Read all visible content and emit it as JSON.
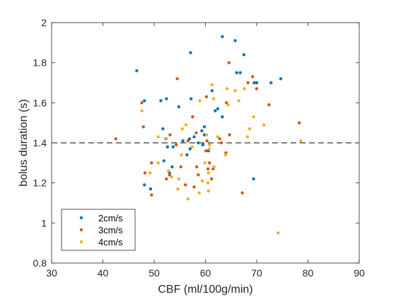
{
  "chart_data": {
    "type": "scatter",
    "xlabel": "CBF (ml/100g/min)",
    "ylabel": "bolus duration (s)",
    "xlim": [
      30,
      90
    ],
    "ylim": [
      0.8,
      2
    ],
    "xticks": [
      30,
      40,
      50,
      60,
      70,
      80,
      90
    ],
    "yticks": [
      0.8,
      1,
      1.2,
      1.4,
      1.6,
      1.8,
      2
    ],
    "xtick_labels": [
      "30",
      "40",
      "50",
      "60",
      "70",
      "80",
      "90"
    ],
    "ytick_labels": [
      "0.8",
      "1",
      "1.2",
      "1.4",
      "1.6",
      "1.8",
      "2"
    ],
    "grid": false,
    "legend_position": "bottom-left",
    "reference_line": {
      "y": 1.4,
      "style": "dashed",
      "color": "#000000"
    },
    "series": [
      {
        "name": "2cm/s",
        "color": "#0072BD",
        "points": [
          [
            63.3,
            1.93
          ],
          [
            65.8,
            1.91
          ],
          [
            57.1,
            1.85
          ],
          [
            67.5,
            1.84
          ],
          [
            46.6,
            1.76
          ],
          [
            66.1,
            1.75
          ],
          [
            66.8,
            1.75
          ],
          [
            74.7,
            1.72
          ],
          [
            72.8,
            1.7
          ],
          [
            69.5,
            1.7
          ],
          [
            70.0,
            1.7
          ],
          [
            61.3,
            1.66
          ],
          [
            57.2,
            1.62
          ],
          [
            52.4,
            1.62
          ],
          [
            48.1,
            1.61
          ],
          [
            51.3,
            1.61
          ],
          [
            61.9,
            1.56
          ],
          [
            62.4,
            1.57
          ],
          [
            63.3,
            1.53
          ],
          [
            54.8,
            1.58
          ],
          [
            51.7,
            1.47
          ],
          [
            59.8,
            1.48
          ],
          [
            59.3,
            1.46
          ],
          [
            59.8,
            1.44
          ],
          [
            56.9,
            1.42
          ],
          [
            52.3,
            1.42
          ],
          [
            58.6,
            1.4
          ],
          [
            53.7,
            1.38
          ],
          [
            52.6,
            1.38
          ],
          [
            59.5,
            1.39
          ],
          [
            57.0,
            1.37
          ],
          [
            60.6,
            1.36
          ],
          [
            56.4,
            1.34
          ],
          [
            51.9,
            1.31
          ],
          [
            53.0,
            1.25
          ],
          [
            48.1,
            1.19
          ],
          [
            69.4,
            1.22
          ],
          [
            49.3,
            1.17
          ],
          [
            53.5,
            1.28
          ],
          [
            55.6,
            1.41
          ],
          [
            57.8,
            1.43
          ]
        ]
      },
      {
        "name": "3cm/s",
        "color": "#D95319",
        "points": [
          [
            64.6,
            1.8
          ],
          [
            54.5,
            1.72
          ],
          [
            69.2,
            1.73
          ],
          [
            68.3,
            1.7
          ],
          [
            70.0,
            1.67
          ],
          [
            47.6,
            1.6
          ],
          [
            60.2,
            1.63
          ],
          [
            64.1,
            1.6
          ],
          [
            72.4,
            1.59
          ],
          [
            78.3,
            1.5
          ],
          [
            47.9,
            1.48
          ],
          [
            53.1,
            1.44
          ],
          [
            54.3,
            1.39
          ],
          [
            64.7,
            1.44
          ],
          [
            42.5,
            1.42
          ],
          [
            56.6,
            1.41
          ],
          [
            60.3,
            1.41
          ],
          [
            63.1,
            1.4
          ],
          [
            60.1,
            1.36
          ],
          [
            60.8,
            1.3
          ],
          [
            60.5,
            1.27
          ],
          [
            49.5,
            1.3
          ],
          [
            53.0,
            1.24
          ],
          [
            58.6,
            1.24
          ],
          [
            52.4,
            1.22
          ],
          [
            56.1,
            1.19
          ],
          [
            57.8,
            1.18
          ],
          [
            61.2,
            1.22
          ],
          [
            67.2,
            1.15
          ],
          [
            49.5,
            1.14
          ],
          [
            58.3,
            1.28
          ],
          [
            64.0,
            1.35
          ],
          [
            57.5,
            1.53
          ],
          [
            58.2,
            1.45
          ],
          [
            48.2,
            1.25
          ],
          [
            55.2,
            1.28
          ],
          [
            61.5,
            1.27
          ],
          [
            62.8,
            1.42
          ]
        ]
      },
      {
        "name": "4cm/s",
        "color": "#EDB120",
        "points": [
          [
            61.3,
            1.69
          ],
          [
            64.2,
            1.67
          ],
          [
            65.8,
            1.66
          ],
          [
            67.6,
            1.67
          ],
          [
            61.6,
            1.62
          ],
          [
            64.4,
            1.59
          ],
          [
            58.9,
            1.61
          ],
          [
            66.5,
            1.61
          ],
          [
            47.6,
            1.56
          ],
          [
            69.4,
            1.53
          ],
          [
            56.2,
            1.49
          ],
          [
            60.2,
            1.44
          ],
          [
            68.6,
            1.47
          ],
          [
            71.4,
            1.49
          ],
          [
            50.8,
            1.43
          ],
          [
            55.5,
            1.47
          ],
          [
            62.4,
            1.43
          ],
          [
            52.4,
            1.42
          ],
          [
            60.8,
            1.39
          ],
          [
            68.2,
            1.43
          ],
          [
            60.7,
            1.37
          ],
          [
            63.9,
            1.34
          ],
          [
            55.3,
            1.34
          ],
          [
            59.9,
            1.3
          ],
          [
            61.7,
            1.28
          ],
          [
            60.6,
            1.25
          ],
          [
            50.8,
            1.3
          ],
          [
            52.8,
            1.26
          ],
          [
            49.2,
            1.25
          ],
          [
            53.4,
            1.23
          ],
          [
            54.8,
            1.22
          ],
          [
            59.4,
            1.21
          ],
          [
            60.5,
            1.2
          ],
          [
            54.6,
            1.17
          ],
          [
            58.8,
            1.15
          ],
          [
            56.6,
            1.12
          ],
          [
            60.6,
            1.16
          ],
          [
            74.2,
            0.95
          ],
          [
            78.6,
            1.41
          ],
          [
            57.4,
            1.38
          ]
        ]
      }
    ]
  }
}
